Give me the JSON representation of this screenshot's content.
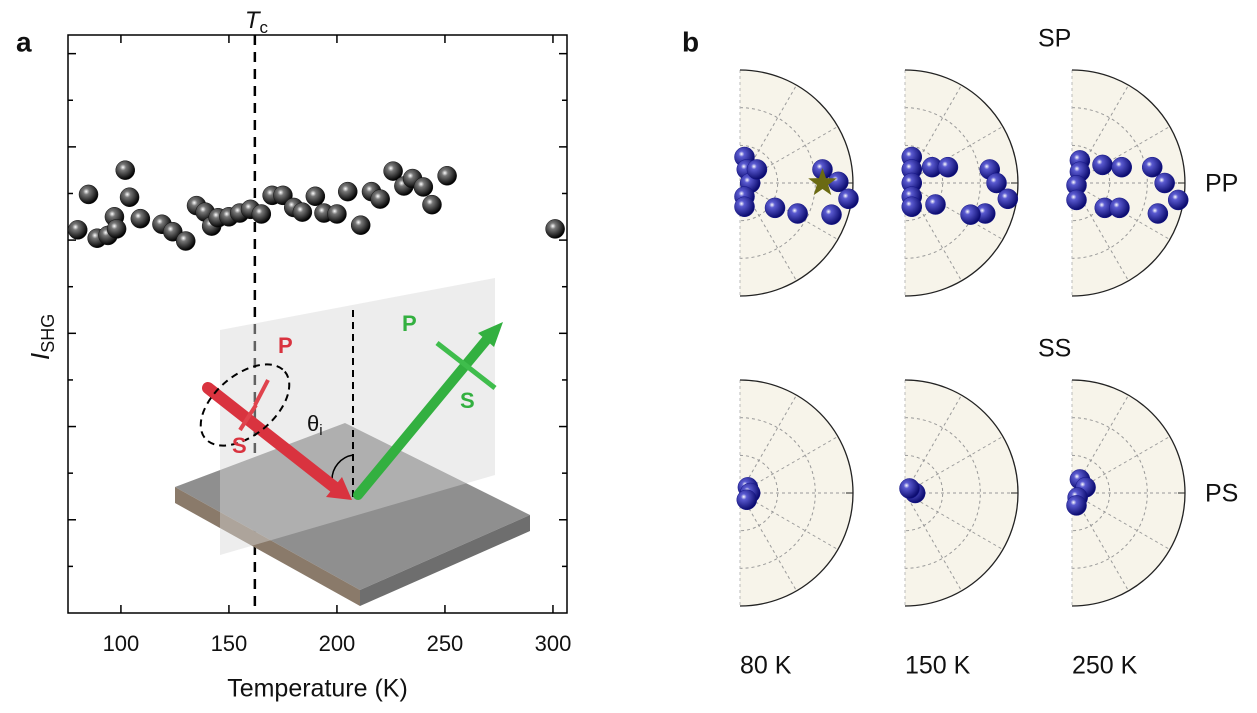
{
  "chart_data": [
    {
      "type": "scatter",
      "panel_label": "a",
      "x_label": "Temperature (K)",
      "y_label": "I",
      "y_label_sub": "SHG",
      "x": [
        80,
        85,
        89,
        94,
        97,
        98,
        102,
        104,
        109,
        119,
        124,
        130,
        135,
        139,
        142,
        145,
        150,
        155,
        160,
        165,
        170,
        175,
        180,
        184,
        190,
        194,
        200,
        205,
        211,
        216,
        220,
        226,
        231,
        235,
        240,
        244,
        251,
        301
      ],
      "values": [
        4.11,
        4.49,
        4.02,
        4.05,
        4.25,
        4.12,
        4.75,
        4.46,
        4.23,
        4.17,
        4.09,
        3.99,
        4.37,
        4.3,
        4.15,
        4.24,
        4.25,
        4.29,
        4.33,
        4.28,
        4.48,
        4.48,
        4.35,
        4.3,
        4.47,
        4.29,
        4.28,
        4.52,
        4.16,
        4.52,
        4.44,
        4.74,
        4.58,
        4.66,
        4.57,
        4.38,
        4.69,
        4.12
      ],
      "color": "#111111",
      "xlim": [
        75.5,
        306.5
      ],
      "xticks": [
        100,
        150,
        200,
        250,
        300
      ],
      "ylim": [
        0,
        6.2
      ],
      "yticks": [
        0.5,
        1,
        1.5,
        2,
        2.5,
        3,
        3.5,
        4,
        4.5,
        5,
        5.5,
        6
      ],
      "vline": {
        "x": 162,
        "label": "T",
        "label_sub": "c"
      },
      "inset": {
        "incident_p": "P",
        "incident_s": "S",
        "outgoing_p": "P",
        "outgoing_s": "S",
        "angle": "θ",
        "angle_sub": "i"
      }
    },
    {
      "type": "polar",
      "panel_label": "b",
      "color": "#14148a",
      "star_color": "#6b6a12",
      "columns": [
        "80 K",
        "150 K",
        "250 K"
      ],
      "rows": [
        {
          "top_label": "SP",
          "side_label": "PP",
          "panels": [
            {
              "x": [
                0.04,
                0.06,
                0.09,
                0.04,
                0.04,
                0.15,
                0.31,
                0.51,
                0.73,
                0.87,
                0.96,
                0.81
              ],
              "y": [
                0.23,
                0.12,
                0,
                -0.12,
                -0.21,
                0.12,
                -0.22,
                -0.27,
                0.12,
                0.01,
                -0.14,
                -0.28
              ],
              "star_x": 0.73,
              "star_y": 0
            },
            {
              "x": [
                0.06,
                0.06,
                0.06,
                0.06,
                0.06,
                0.24,
                0.38,
                0.27,
                0.75,
                0.81,
                0.91,
                0.71,
                0.58
              ],
              "y": [
                0.23,
                0.12,
                0,
                -0.12,
                -0.21,
                0.14,
                0.14,
                -0.19,
                0.12,
                0,
                -0.14,
                -0.27,
                -0.28
              ]
            },
            {
              "x": [
                0.07,
                0.07,
                0.04,
                0.04,
                0.27,
                0.44,
                0.29,
                0.42,
                0.71,
                0.82,
                0.94,
                0.76
              ],
              "y": [
                0.2,
                0.1,
                -0.02,
                -0.15,
                0.16,
                0.14,
                -0.22,
                -0.22,
                0.14,
                0,
                -0.15,
                -0.27
              ]
            }
          ]
        },
        {
          "top_label": "SS",
          "side_label": "PS",
          "panels": [
            {
              "x": [
                0.07,
                0.09,
                0.06
              ],
              "y": [
                0.05,
                0,
                -0.06
              ]
            },
            {
              "x": [
                0.09,
                0.04
              ],
              "y": [
                0,
                0.04
              ]
            },
            {
              "x": [
                0.07,
                0.12,
                0.05,
                0.04
              ],
              "y": [
                0.12,
                0.05,
                -0.04,
                -0.11
              ]
            }
          ]
        }
      ]
    }
  ]
}
